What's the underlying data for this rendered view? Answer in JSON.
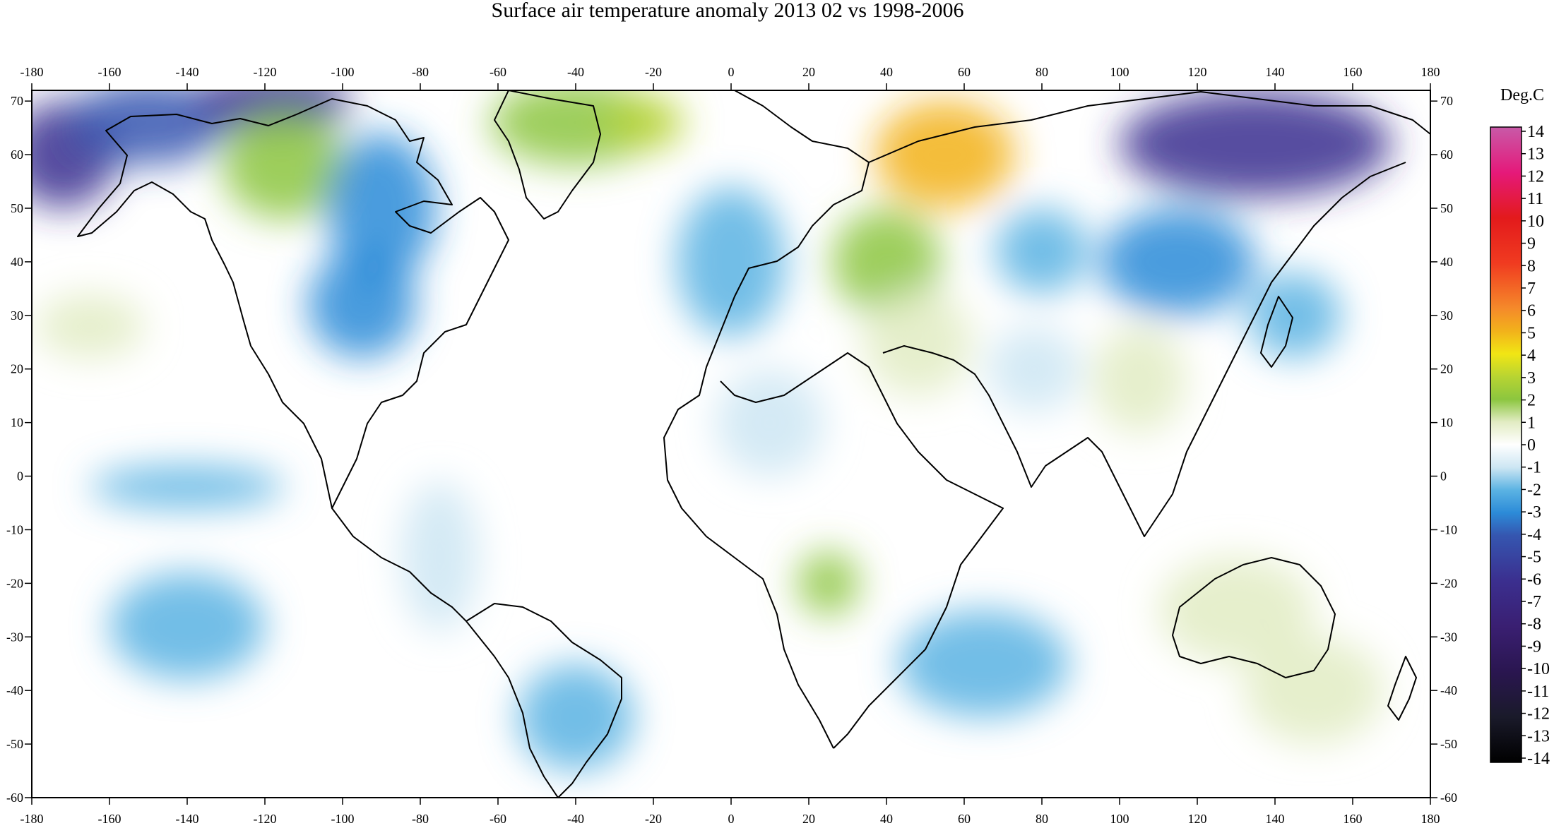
{
  "title": "Surface air temperature anomaly 2013 02 vs 1998-2006",
  "map": {
    "lon_range": [
      -180,
      180
    ],
    "lat_range": [
      -60,
      72
    ],
    "lon_ticks": [
      -180,
      -160,
      -140,
      -120,
      -100,
      -80,
      -60,
      -40,
      -20,
      0,
      20,
      40,
      60,
      80,
      100,
      120,
      140,
      160,
      180
    ],
    "lat_ticks": [
      70,
      60,
      50,
      40,
      30,
      20,
      10,
      0,
      -10,
      -20,
      -30,
      -40,
      -50,
      -60
    ],
    "projection": "equirectangular"
  },
  "colorbar": {
    "unit_label": "Deg.C",
    "ticks": [
      14,
      13,
      12,
      11,
      10,
      9,
      8,
      7,
      6,
      5,
      4,
      3,
      2,
      1,
      0,
      -1,
      -2,
      -3,
      -4,
      -5,
      -6,
      -7,
      -8,
      -9,
      -10,
      -11,
      -12,
      -13,
      -14
    ],
    "stops": [
      {
        "v": 14,
        "c": "#c85aa8"
      },
      {
        "v": 12,
        "c": "#e5197a"
      },
      {
        "v": 10,
        "c": "#e31a1c"
      },
      {
        "v": 8,
        "c": "#f03b20"
      },
      {
        "v": 6,
        "c": "#f58a2a"
      },
      {
        "v": 5,
        "c": "#f2b21b"
      },
      {
        "v": 4,
        "c": "#f1e614"
      },
      {
        "v": 3,
        "c": "#b8d432"
      },
      {
        "v": 2,
        "c": "#8cc63f"
      },
      {
        "v": 1,
        "c": "#e2ecc3"
      },
      {
        "v": 0,
        "c": "#ffffff"
      },
      {
        "v": -1,
        "c": "#cde6f3"
      },
      {
        "v": -2,
        "c": "#5bb3e3"
      },
      {
        "v": -3,
        "c": "#2c8bd8"
      },
      {
        "v": -4,
        "c": "#3556b0"
      },
      {
        "v": -6,
        "c": "#3b2f8f"
      },
      {
        "v": -8,
        "c": "#3a1f72"
      },
      {
        "v": -10,
        "c": "#2a1650"
      },
      {
        "v": -12,
        "c": "#1a1a2a"
      },
      {
        "v": -14,
        "c": "#000000"
      }
    ]
  },
  "anomaly_regions": [
    {
      "name": "north-pacific-cold",
      "lon": -172,
      "lat": 60,
      "rlon": 14,
      "rlat": 10,
      "value": -5
    },
    {
      "name": "alaska-cold",
      "lon": -150,
      "lat": 66,
      "rlon": 20,
      "rlat": 8,
      "value": -4
    },
    {
      "name": "northern-canada-cold",
      "lon": -118,
      "lat": 70,
      "rlon": 20,
      "rlat": 6,
      "value": -5
    },
    {
      "name": "western-canada-warm",
      "lon": -115,
      "lat": 58,
      "rlon": 16,
      "rlat": 10,
      "value": 2
    },
    {
      "name": "hudson-bay-cold",
      "lon": -90,
      "lat": 50,
      "rlon": 14,
      "rlat": 14,
      "value": -3
    },
    {
      "name": "central-us-cold",
      "lon": -95,
      "lat": 32,
      "rlon": 14,
      "rlat": 10,
      "value": -3
    },
    {
      "name": "greenland-warm",
      "lon": -40,
      "lat": 66,
      "rlon": 22,
      "rlat": 8,
      "value": 2
    },
    {
      "name": "iceland-warm",
      "lon": -22,
      "lat": 66,
      "rlon": 10,
      "rlat": 5,
      "value": 3
    },
    {
      "name": "europe-cold",
      "lon": 0,
      "lat": 40,
      "rlon": 14,
      "rlat": 14,
      "value": -2
    },
    {
      "name": "north-africa-cold",
      "lon": 10,
      "lat": 10,
      "rlon": 14,
      "rlat": 10,
      "value": -1
    },
    {
      "name": "russia-warm",
      "lon": 55,
      "lat": 60,
      "rlon": 18,
      "rlat": 10,
      "value": 5
    },
    {
      "name": "black-sea-warm",
      "lon": 40,
      "lat": 40,
      "rlon": 14,
      "rlat": 10,
      "value": 2
    },
    {
      "name": "middle-east-warm",
      "lon": 48,
      "lat": 25,
      "rlon": 14,
      "rlat": 10,
      "value": 1
    },
    {
      "name": "siberia-cold",
      "lon": 135,
      "lat": 62,
      "rlon": 35,
      "rlat": 10,
      "value": -5
    },
    {
      "name": "mongolia-cold",
      "lon": 115,
      "lat": 40,
      "rlon": 20,
      "rlat": 10,
      "value": -3
    },
    {
      "name": "central-asia-cold",
      "lon": 80,
      "lat": 42,
      "rlon": 12,
      "rlat": 8,
      "value": -2
    },
    {
      "name": "india-cold",
      "lon": 78,
      "lat": 20,
      "rlon": 12,
      "rlat": 8,
      "value": -1
    },
    {
      "name": "southeast-asia-warm",
      "lon": 105,
      "lat": 18,
      "rlon": 12,
      "rlat": 10,
      "value": 1
    },
    {
      "name": "japan-cold",
      "lon": 145,
      "lat": 30,
      "rlon": 12,
      "rlat": 8,
      "value": -2
    },
    {
      "name": "hawaii-warm",
      "lon": -165,
      "lat": 28,
      "rlon": 14,
      "rlat": 6,
      "value": 1
    },
    {
      "name": "east-pacific-cold",
      "lon": -140,
      "lat": -2,
      "rlon": 25,
      "rlat": 4,
      "value": -2
    },
    {
      "name": "south-pacific-cold",
      "lon": -140,
      "lat": -28,
      "rlon": 20,
      "rlat": 10,
      "value": -2
    },
    {
      "name": "south-america-cold",
      "lon": -75,
      "lat": -15,
      "rlon": 10,
      "rlat": 14,
      "value": -1
    },
    {
      "name": "south-atlantic-cold",
      "lon": -40,
      "lat": -45,
      "rlon": 15,
      "rlat": 10,
      "value": -2
    },
    {
      "name": "southern-africa-warm",
      "lon": 25,
      "lat": -20,
      "rlon": 8,
      "rlat": 6,
      "value": 2
    },
    {
      "name": "indian-ocean-cold",
      "lon": 65,
      "lat": -35,
      "rlon": 22,
      "rlat": 10,
      "value": -2
    },
    {
      "name": "australia-warm",
      "lon": 130,
      "lat": -25,
      "rlon": 20,
      "rlat": 10,
      "value": 1
    },
    {
      "name": "south-pacific-east-warm",
      "lon": 150,
      "lat": -40,
      "rlon": 18,
      "rlat": 10,
      "value": 1
    }
  ]
}
